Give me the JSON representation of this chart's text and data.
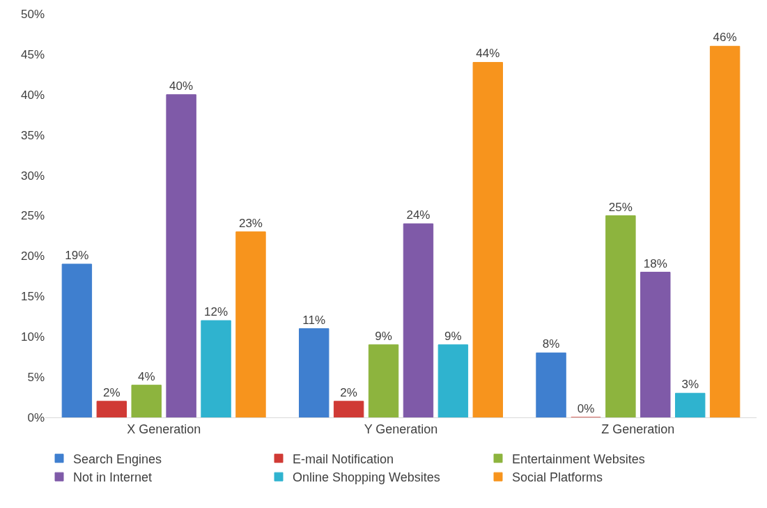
{
  "chart_data": {
    "type": "bar",
    "categories": [
      "X Generation",
      "Y Generation",
      "Z Generation"
    ],
    "series": [
      {
        "name": "Search Engines",
        "color": "#3f7fcf",
        "values": [
          19,
          11,
          8
        ],
        "value_labels": [
          "19%",
          "11%",
          "8%"
        ]
      },
      {
        "name": "E-mail Notification",
        "color": "#d03a35",
        "values": [
          2,
          2,
          0
        ],
        "value_labels": [
          "2%",
          "2%",
          "0%"
        ]
      },
      {
        "name": "Entertainment Websites",
        "color": "#8db43e",
        "values": [
          4,
          9,
          25
        ],
        "value_labels": [
          "4%",
          "9%",
          "25%"
        ]
      },
      {
        "name": "Not in Internet",
        "color": "#7f5aa8",
        "values": [
          40,
          24,
          18
        ],
        "value_labels": [
          "40%",
          "24%",
          "18%"
        ]
      },
      {
        "name": "Online Shopping Websites",
        "color": "#2fb3cf",
        "values": [
          12,
          9,
          3
        ],
        "value_labels": [
          "12%",
          "9%",
          "3%"
        ]
      },
      {
        "name": "Social Platforms",
        "color": "#f7941d",
        "values": [
          23,
          44,
          46
        ],
        "value_labels": [
          "23%",
          "44%",
          "46%"
        ]
      }
    ],
    "ylim": [
      0,
      50
    ],
    "yticks": [
      {
        "value": 0,
        "label": "0%"
      },
      {
        "value": 5,
        "label": "5%"
      },
      {
        "value": 10,
        "label": "10%"
      },
      {
        "value": 15,
        "label": "15%"
      },
      {
        "value": 20,
        "label": "20%"
      },
      {
        "value": 25,
        "label": "25%"
      },
      {
        "value": 30,
        "label": "30%"
      },
      {
        "value": 35,
        "label": "35%"
      },
      {
        "value": 40,
        "label": "40%"
      },
      {
        "value": 45,
        "label": "45%"
      },
      {
        "value": 50,
        "label": "50%"
      }
    ],
    "grid": false,
    "legend": "bottom"
  }
}
